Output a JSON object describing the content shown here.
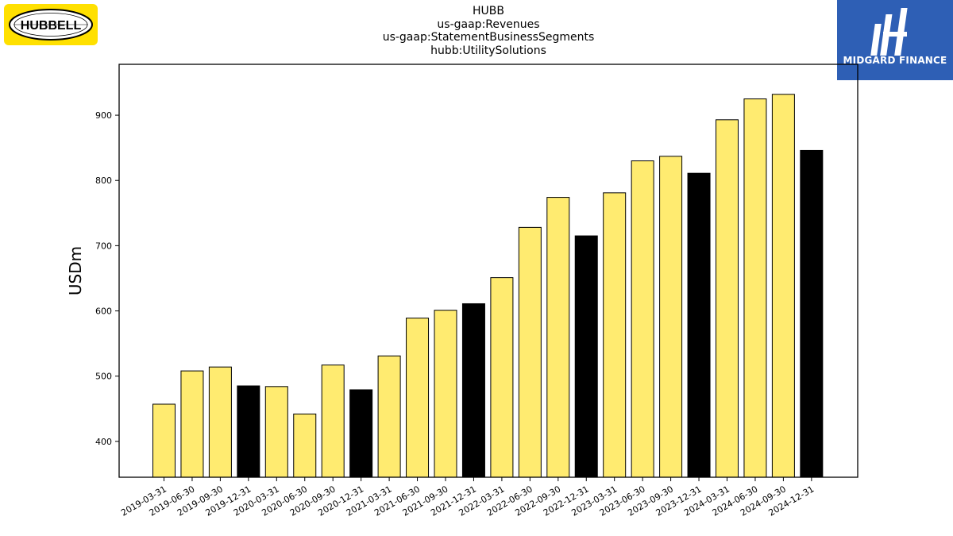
{
  "chart_data": {
    "type": "bar",
    "title_lines": [
      "HUBB",
      "us-gaap:Revenues",
      "us-gaap:StatementBusinessSegments",
      "hubb:UtilitySolutions"
    ],
    "xlabel": "",
    "ylabel": "USDm",
    "ylim": [
      345,
      978
    ],
    "yticks": [
      400,
      500,
      600,
      700,
      800,
      900
    ],
    "grid": false,
    "categories": [
      "2019-03-31",
      "2019-06-30",
      "2019-09-30",
      "2019-12-31",
      "2020-03-31",
      "2020-06-30",
      "2020-09-30",
      "2020-12-31",
      "2021-03-31",
      "2021-06-30",
      "2021-09-30",
      "2021-12-31",
      "2022-03-31",
      "2022-06-30",
      "2022-09-30",
      "2022-12-31",
      "2023-03-31",
      "2023-06-30",
      "2023-09-30",
      "2023-12-31",
      "2024-03-31",
      "2024-06-30",
      "2024-09-30",
      "2024-12-31"
    ],
    "values": [
      457,
      508,
      514,
      485,
      484,
      442,
      517,
      479,
      531,
      589,
      601,
      611,
      651,
      728,
      774,
      715,
      781,
      830,
      837,
      811,
      893,
      925,
      932,
      846
    ],
    "colors": {
      "quarter": "#ffeb70",
      "year_end": "#000000",
      "edge": "#000000"
    },
    "year_end_quarter": "12-31"
  },
  "logos": {
    "left_text": "HUBBELL",
    "right_text": "MIDGARD FINANCE",
    "left_bg": "#ffe000",
    "right_bg": "#2e5fb5"
  }
}
